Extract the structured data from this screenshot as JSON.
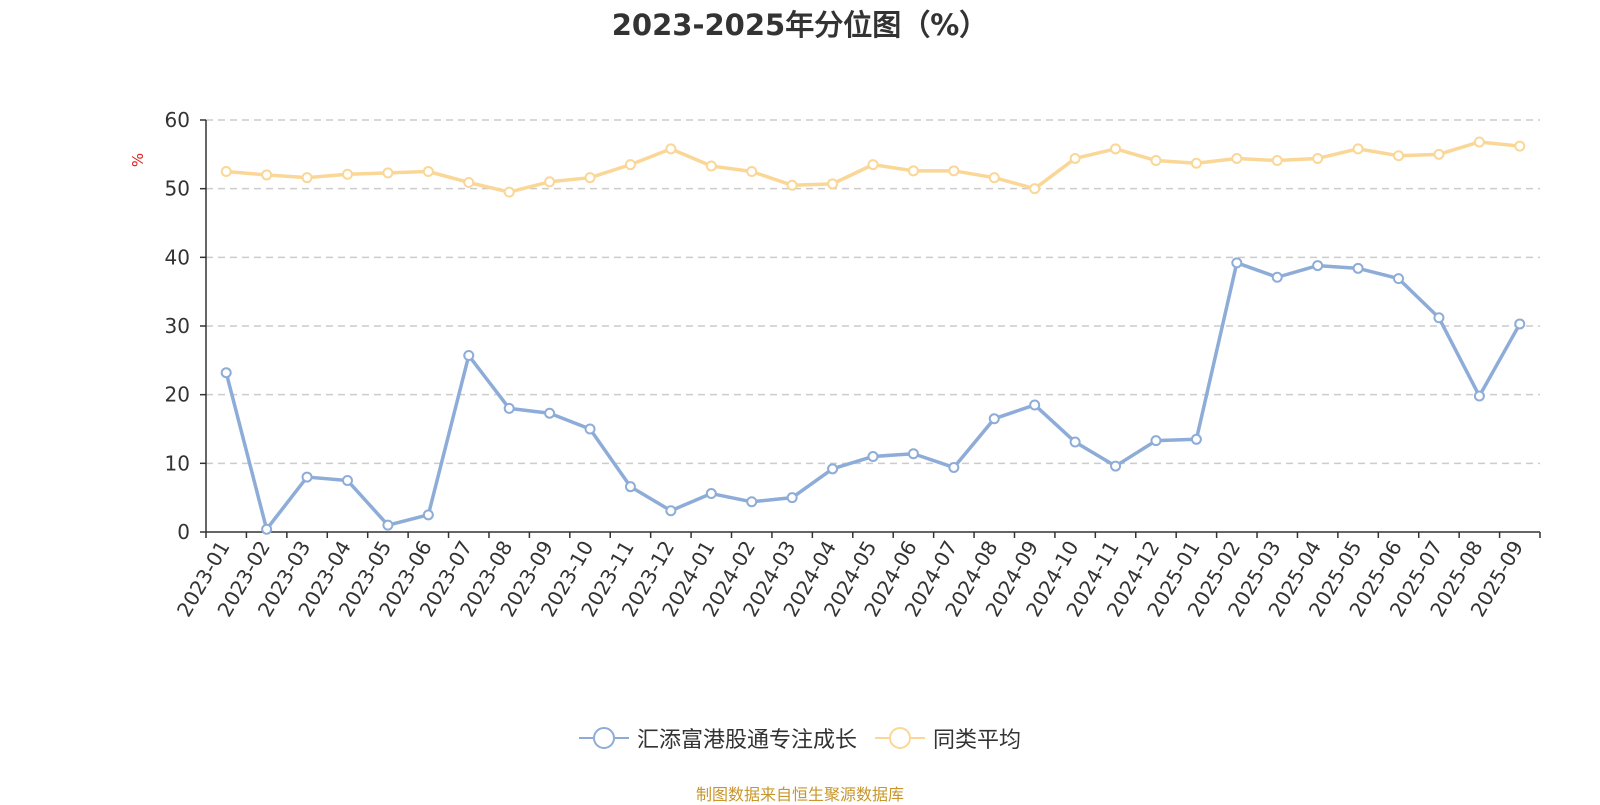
{
  "chart_data": {
    "type": "line",
    "title": "2023-2025年分位图（%）",
    "ylabel": "%",
    "ylim": [
      0,
      60
    ],
    "yticks": [
      "0",
      "10",
      "20",
      "30",
      "40",
      "50",
      "60"
    ],
    "grid": true,
    "legend_position": "bottom",
    "categories": [
      "2023-01",
      "2023-02",
      "2023-03",
      "2023-04",
      "2023-05",
      "2023-06",
      "2023-07",
      "2023-08",
      "2023-09",
      "2023-10",
      "2023-11",
      "2023-12",
      "2024-01",
      "2024-02",
      "2024-03",
      "2024-04",
      "2024-05",
      "2024-06",
      "2024-07",
      "2024-08",
      "2024-09",
      "2024-10",
      "2024-11",
      "2024-12",
      "2025-01",
      "2025-02",
      "2025-03",
      "2025-04",
      "2025-05",
      "2025-06",
      "2025-07",
      "2025-08",
      "2025-09"
    ],
    "series": [
      {
        "name": "汇添富港股通专注成长",
        "color": "#8eacd8",
        "values": [
          23.2,
          0.4,
          8.0,
          7.5,
          1.0,
          2.5,
          25.7,
          18.0,
          17.3,
          15.0,
          6.6,
          3.1,
          5.6,
          4.4,
          5.0,
          9.2,
          11.0,
          11.4,
          9.4,
          16.5,
          18.5,
          13.1,
          9.6,
          13.3,
          13.5,
          39.2,
          37.1,
          38.8,
          38.4,
          36.9,
          31.2,
          19.8,
          30.3
        ]
      },
      {
        "name": "同类平均",
        "color": "#fad797",
        "values": [
          52.5,
          52.0,
          51.6,
          52.1,
          52.3,
          52.5,
          50.9,
          49.5,
          51.0,
          51.6,
          53.5,
          55.8,
          53.3,
          52.5,
          50.5,
          50.7,
          53.5,
          52.6,
          52.6,
          51.6,
          50.0,
          54.4,
          55.8,
          54.1,
          53.7,
          54.4,
          54.1,
          54.4,
          55.8,
          54.8,
          55.0,
          56.8,
          56.2
        ]
      }
    ]
  },
  "source": "制图数据来自恒生聚源数据库"
}
